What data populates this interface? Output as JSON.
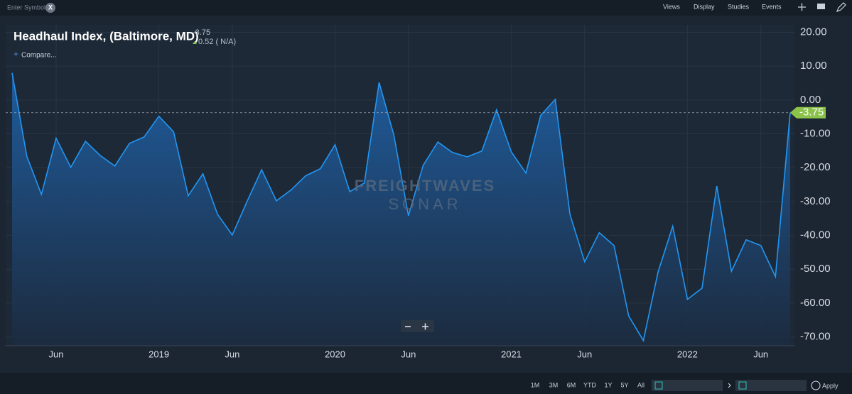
{
  "toolbar": {
    "symbol_placeholder": "Enter Symbol",
    "clear": "X",
    "menus": [
      "Views",
      "Display",
      "Studies",
      "Events"
    ]
  },
  "header": {
    "change": "0.52 ( N/A)",
    "compare": "Compare..."
  },
  "watermark": {
    "brand": "FREIGHTWAVES",
    "product": "SONAR"
  },
  "footer": {
    "ranges": [
      "1M",
      "3M",
      "6M",
      "YTD",
      "1Y",
      "5Y",
      "All"
    ],
    "apply": "Apply"
  },
  "chart_data": {
    "type": "area",
    "title": "Headhaul Index, (Baltimore, MD)",
    "color": "#2196f3",
    "grid": true,
    "x": [
      "2018-03",
      "2018-04",
      "2018-05",
      "2018-06",
      "2018-07",
      "2018-08",
      "2018-09",
      "2018-10",
      "2018-11",
      "2018-12",
      "2019-01",
      "2019-02",
      "2019-03",
      "2019-04",
      "2019-05",
      "2019-06",
      "2019-07",
      "2019-08",
      "2019-09",
      "2019-10",
      "2019-11",
      "2019-12",
      "2020-01",
      "2020-02",
      "2020-03",
      "2020-04",
      "2020-05",
      "2020-06",
      "2020-07",
      "2020-08",
      "2020-09",
      "2020-10",
      "2020-11",
      "2020-12",
      "2021-01",
      "2021-02",
      "2021-03",
      "2021-04",
      "2021-05",
      "2021-06",
      "2021-07",
      "2021-08",
      "2021-09",
      "2021-10",
      "2021-11",
      "2021-12",
      "2022-01",
      "2022-02",
      "2022-03",
      "2022-04",
      "2022-05",
      "2022-06",
      "2022-07",
      "2022-08"
    ],
    "values": [
      8.0,
      -16.6,
      -27.9,
      -11.3,
      -19.9,
      -12.2,
      -16.4,
      -19.5,
      -12.8,
      -10.9,
      -4.8,
      -9.4,
      -28.3,
      -21.8,
      -33.8,
      -39.9,
      -30.0,
      -20.6,
      -29.8,
      -26.6,
      -22.4,
      -20.3,
      -13.2,
      -27.1,
      -24.5,
      5.2,
      -10.3,
      -34.2,
      -19.3,
      -12.4,
      -15.5,
      -16.8,
      -15.1,
      -2.9,
      -15.3,
      -21.6,
      -4.6,
      0.2,
      -33.8,
      -47.8,
      -39.2,
      -43.0,
      -63.8,
      -71.1,
      -50.8,
      -37.3,
      -58.9,
      -55.6,
      -25.4,
      -50.6,
      -41.3,
      -43.0,
      -52.2,
      -3.75
    ],
    "ylim": [
      -72.6,
      22.2
    ],
    "yticks": [
      {
        "value": 20,
        "label": "20.00"
      },
      {
        "value": 10,
        "label": "10.00"
      },
      {
        "value": 0,
        "label": "0.00"
      },
      {
        "value": -10,
        "label": "-10.00"
      },
      {
        "value": -20,
        "label": "-20.00"
      },
      {
        "value": -30,
        "label": "-30.00"
      },
      {
        "value": -40,
        "label": "-40.00"
      },
      {
        "value": -50,
        "label": "-50.00"
      },
      {
        "value": -60,
        "label": "-60.00"
      },
      {
        "value": -70,
        "label": "-70.00"
      }
    ],
    "xticks": [
      {
        "value": "2018-06",
        "label": "Jun"
      },
      {
        "value": "2019-01",
        "label": "2019"
      },
      {
        "value": "2019-06",
        "label": "Jun"
      },
      {
        "value": "2020-01",
        "label": "2020"
      },
      {
        "value": "2020-06",
        "label": "Jun"
      },
      {
        "value": "2021-01",
        "label": "2021"
      },
      {
        "value": "2021-06",
        "label": "Jun"
      },
      {
        "value": "2022-01",
        "label": "2022"
      },
      {
        "value": "2022-06",
        "label": "Jun"
      }
    ]
  }
}
